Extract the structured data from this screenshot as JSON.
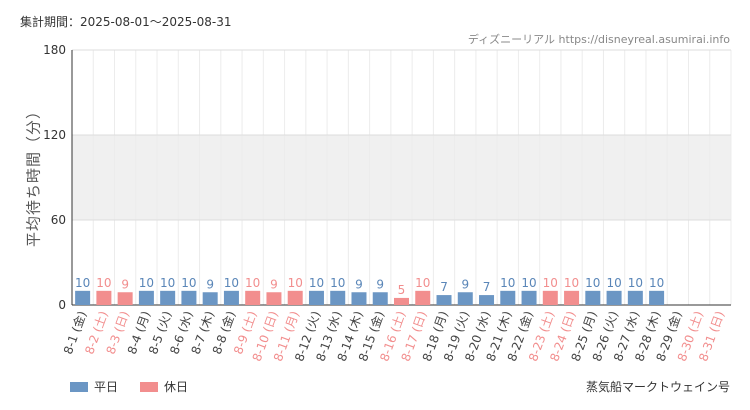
{
  "header": {
    "period_label": "集計期間：2025-08-01～2025-08-31",
    "credit": "ディズニーリアル https://disneyreal.asumirai.info"
  },
  "footer": {
    "attraction": "蒸気船マークトウェイン号"
  },
  "chart_data": {
    "type": "bar",
    "title": "",
    "ylabel": "平均待ち時間（分）",
    "xlabel": "",
    "ylim": [
      0,
      180
    ],
    "yticks": [
      0,
      60,
      120,
      180
    ],
    "grid": true,
    "shaded_band": [
      60,
      120
    ],
    "legend": {
      "placement": "bottom-left",
      "entries": [
        {
          "name": "平日",
          "color": "#6b96c4"
        },
        {
          "name": "休日",
          "color": "#f28e8e"
        }
      ]
    },
    "categories": [
      "8-1 (金)",
      "8-2 (土)",
      "8-3 (日)",
      "8-4 (月)",
      "8-5 (火)",
      "8-6 (水)",
      "8-7 (木)",
      "8-8 (金)",
      "8-9 (土)",
      "8-10 (日)",
      "8-11 (月)",
      "8-12 (火)",
      "8-13 (水)",
      "8-14 (木)",
      "8-15 (金)",
      "8-16 (土)",
      "8-17 (日)",
      "8-18 (月)",
      "8-19 (火)",
      "8-20 (水)",
      "8-21 (木)",
      "8-22 (金)",
      "8-23 (土)",
      "8-24 (日)",
      "8-25 (月)",
      "8-26 (火)",
      "8-27 (水)",
      "8-28 (木)",
      "8-29 (金)",
      "8-30 (土)",
      "8-31 (日)"
    ],
    "values": [
      10,
      10,
      9,
      10,
      10,
      10,
      9,
      10,
      10,
      9,
      10,
      10,
      10,
      9,
      9,
      5,
      10,
      7,
      9,
      7,
      10,
      10,
      10,
      10,
      10,
      10,
      10,
      10,
      null,
      null,
      null
    ],
    "day_type": [
      "平日",
      "休日",
      "休日",
      "平日",
      "平日",
      "平日",
      "平日",
      "平日",
      "休日",
      "休日",
      "休日",
      "平日",
      "平日",
      "平日",
      "平日",
      "休日",
      "休日",
      "平日",
      "平日",
      "平日",
      "平日",
      "平日",
      "休日",
      "休日",
      "平日",
      "平日",
      "平日",
      "平日",
      "平日",
      "休日",
      "休日"
    ]
  }
}
